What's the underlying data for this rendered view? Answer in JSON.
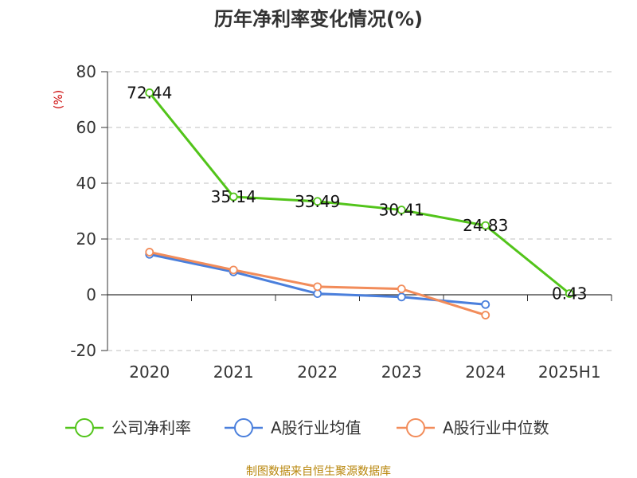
{
  "chart_data": {
    "type": "line",
    "title": "历年净利率变化情况(%)",
    "xlabel": "",
    "ylabel": "(%)",
    "categories": [
      "2020",
      "2021",
      "2022",
      "2023",
      "2024",
      "2025H1"
    ],
    "ylim": [
      -20,
      80
    ],
    "yticks": [
      80,
      60,
      40,
      20,
      0,
      -20
    ],
    "grid": true,
    "legend_position": "bottom",
    "series": [
      {
        "name": "公司净利率",
        "color": "#52c41a",
        "values": [
          72.44,
          35.14,
          33.49,
          30.41,
          24.83,
          0.43
        ],
        "labels": [
          "72.44",
          "35.14",
          "33.49",
          "30.41",
          "24.83",
          "0.43"
        ]
      },
      {
        "name": "A股行业均值",
        "color": "#4a7fdc",
        "values": [
          14.5,
          8.2,
          0.4,
          -0.8,
          -3.5,
          null
        ]
      },
      {
        "name": "A股行业中位数",
        "color": "#f28c5a",
        "values": [
          15.3,
          8.9,
          2.9,
          2.1,
          -7.3,
          null
        ]
      }
    ]
  },
  "source": "制图数据来自恒生聚源数据库"
}
